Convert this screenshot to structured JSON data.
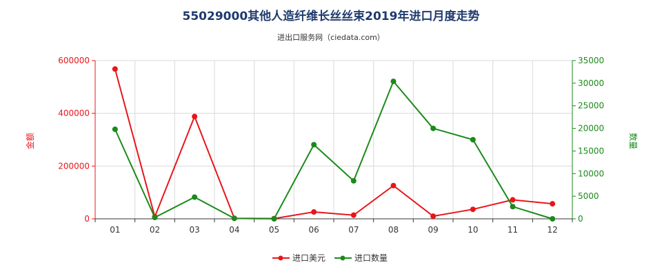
{
  "title": "55029000其他人造纤维长丝丝束2019年进口月度走势",
  "subtitle": "进出口服务网（ciedata.com）",
  "colors": {
    "amount": "#e8151b",
    "quantity": "#1a8a1a",
    "title": "#1f3a6e",
    "grid": "#cccccc"
  },
  "chart_data": {
    "type": "line",
    "categories": [
      "01",
      "02",
      "03",
      "04",
      "05",
      "06",
      "07",
      "08",
      "09",
      "10",
      "11",
      "12"
    ],
    "y_left": {
      "label": "金额",
      "ticks": [
        "0",
        "200000",
        "400000",
        "600000"
      ],
      "range": [
        0,
        600000
      ]
    },
    "y_right": {
      "label": "数量",
      "ticks": [
        "0",
        "5000",
        "10000",
        "15000",
        "20000",
        "25000",
        "30000",
        "35000"
      ],
      "range": [
        0,
        35000
      ]
    },
    "series": [
      {
        "name": "进口美元",
        "axis": "left",
        "color": "#e8151b",
        "values": [
          568000,
          8000,
          388000,
          2000,
          1000,
          26000,
          14000,
          126000,
          10000,
          36000,
          72000,
          57000
        ]
      },
      {
        "name": "进口数量",
        "axis": "right",
        "color": "#1a8a1a",
        "values": [
          19800,
          300,
          4800,
          100,
          0,
          16400,
          8400,
          30400,
          20000,
          17500,
          2700,
          0
        ]
      }
    ],
    "grid": true,
    "legend": "bottom-center"
  }
}
